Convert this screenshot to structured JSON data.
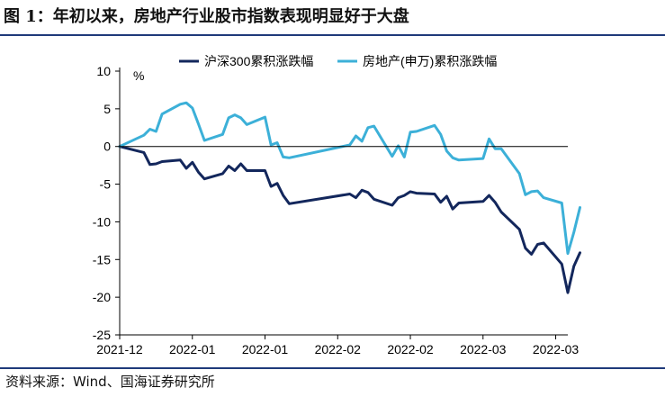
{
  "page": {
    "title": "图 1：年初以来，房地产行业股市指数表现明显好于大盘",
    "source": "资料来源：Wind、国海证券研究所"
  },
  "chart_data": {
    "type": "line",
    "unit_label": "%",
    "ylim": [
      -25,
      10
    ],
    "yticks": [
      10,
      5,
      0,
      -5,
      -10,
      -15,
      -20,
      -25
    ],
    "xlim": [
      "2021-12-31",
      "2022-03-15"
    ],
    "xtick_labels": [
      {
        "date": "2021-12-31",
        "label": "2021-12"
      },
      {
        "date": "2022-01-12",
        "label": "2022-01"
      },
      {
        "date": "2022-01-24",
        "label": "2022-01"
      },
      {
        "date": "2022-02-05",
        "label": "2022-02"
      },
      {
        "date": "2022-02-17",
        "label": "2022-02"
      },
      {
        "date": "2022-03-01",
        "label": "2022-03"
      },
      {
        "date": "2022-03-13",
        "label": "2022-03"
      }
    ],
    "legend_position": "top",
    "colors": {
      "hs300": "#13275c",
      "property": "#3cb0d8"
    },
    "series": [
      {
        "name": "沪深300累积涨跌幅",
        "color": "#13275c",
        "points": [
          [
            "2021-12-31",
            0
          ],
          [
            "2022-01-04",
            -0.8
          ],
          [
            "2022-01-05",
            -2.4
          ],
          [
            "2022-01-06",
            -2.3
          ],
          [
            "2022-01-07",
            -2.0
          ],
          [
            "2022-01-10",
            -1.8
          ],
          [
            "2022-01-11",
            -2.9
          ],
          [
            "2022-01-12",
            -2.1
          ],
          [
            "2022-01-13",
            -3.4
          ],
          [
            "2022-01-14",
            -4.3
          ],
          [
            "2022-01-17",
            -3.6
          ],
          [
            "2022-01-18",
            -2.6
          ],
          [
            "2022-01-19",
            -3.2
          ],
          [
            "2022-01-20",
            -2.3
          ],
          [
            "2022-01-21",
            -3.2
          ],
          [
            "2022-01-24",
            -3.2
          ],
          [
            "2022-01-25",
            -5.3
          ],
          [
            "2022-01-26",
            -4.9
          ],
          [
            "2022-01-27",
            -6.5
          ],
          [
            "2022-01-28",
            -7.6
          ],
          [
            "2022-02-07",
            -6.3
          ],
          [
            "2022-02-08",
            -6.8
          ],
          [
            "2022-02-09",
            -5.8
          ],
          [
            "2022-02-10",
            -6.1
          ],
          [
            "2022-02-11",
            -7.0
          ],
          [
            "2022-02-14",
            -7.8
          ],
          [
            "2022-02-15",
            -6.8
          ],
          [
            "2022-02-16",
            -6.5
          ],
          [
            "2022-02-17",
            -6.0
          ],
          [
            "2022-02-18",
            -6.2
          ],
          [
            "2022-02-21",
            -6.3
          ],
          [
            "2022-02-22",
            -7.4
          ],
          [
            "2022-02-23",
            -6.6
          ],
          [
            "2022-02-24",
            -8.3
          ],
          [
            "2022-02-25",
            -7.5
          ],
          [
            "2022-03-01",
            -7.3
          ],
          [
            "2022-03-02",
            -6.5
          ],
          [
            "2022-03-03",
            -7.4
          ],
          [
            "2022-03-04",
            -8.7
          ],
          [
            "2022-03-07",
            -11.0
          ],
          [
            "2022-03-08",
            -13.5
          ],
          [
            "2022-03-09",
            -14.3
          ],
          [
            "2022-03-10",
            -13.0
          ],
          [
            "2022-03-11",
            -12.8
          ],
          [
            "2022-03-14",
            -15.6
          ],
          [
            "2022-03-15",
            -19.4
          ],
          [
            "2022-03-16",
            -15.9
          ],
          [
            "2022-03-17",
            -14.1
          ]
        ]
      },
      {
        "name": "房地产(申万)累积涨跌幅",
        "color": "#3cb0d8",
        "points": [
          [
            "2021-12-31",
            0
          ],
          [
            "2022-01-04",
            1.5
          ],
          [
            "2022-01-05",
            2.3
          ],
          [
            "2022-01-06",
            2.0
          ],
          [
            "2022-01-07",
            4.3
          ],
          [
            "2022-01-10",
            5.6
          ],
          [
            "2022-01-11",
            5.8
          ],
          [
            "2022-01-12",
            5.1
          ],
          [
            "2022-01-13",
            3.0
          ],
          [
            "2022-01-14",
            0.8
          ],
          [
            "2022-01-17",
            1.6
          ],
          [
            "2022-01-18",
            3.8
          ],
          [
            "2022-01-19",
            4.2
          ],
          [
            "2022-01-20",
            3.8
          ],
          [
            "2022-01-21",
            2.9
          ],
          [
            "2022-01-24",
            3.9
          ],
          [
            "2022-01-25",
            0.2
          ],
          [
            "2022-01-26",
            0.5
          ],
          [
            "2022-01-27",
            -1.4
          ],
          [
            "2022-01-28",
            -1.5
          ],
          [
            "2022-02-07",
            0.2
          ],
          [
            "2022-02-08",
            1.4
          ],
          [
            "2022-02-09",
            0.7
          ],
          [
            "2022-02-10",
            2.5
          ],
          [
            "2022-02-11",
            2.7
          ],
          [
            "2022-02-14",
            -1.3
          ],
          [
            "2022-02-15",
            0.1
          ],
          [
            "2022-02-16",
            -1.4
          ],
          [
            "2022-02-17",
            1.9
          ],
          [
            "2022-02-18",
            2.0
          ],
          [
            "2022-02-21",
            2.8
          ],
          [
            "2022-02-22",
            1.6
          ],
          [
            "2022-02-23",
            -0.6
          ],
          [
            "2022-02-24",
            -1.5
          ],
          [
            "2022-02-25",
            -1.8
          ],
          [
            "2022-03-01",
            -1.6
          ],
          [
            "2022-03-02",
            1.0
          ],
          [
            "2022-03-03",
            -0.3
          ],
          [
            "2022-03-04",
            -0.3
          ],
          [
            "2022-03-07",
            -3.6
          ],
          [
            "2022-03-08",
            -6.4
          ],
          [
            "2022-03-09",
            -6.0
          ],
          [
            "2022-03-10",
            -5.9
          ],
          [
            "2022-03-11",
            -6.8
          ],
          [
            "2022-03-14",
            -7.5
          ],
          [
            "2022-03-15",
            -14.2
          ],
          [
            "2022-03-16",
            -11.4
          ],
          [
            "2022-03-17",
            -8.1
          ]
        ]
      }
    ]
  }
}
